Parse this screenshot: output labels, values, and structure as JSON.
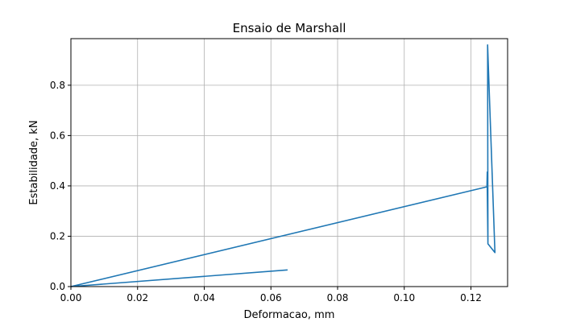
{
  "chart_data": {
    "type": "line",
    "title": "Ensaio de Marshall",
    "xlabel": "Deformacao, mm",
    "ylabel": "Estabilidade, kN",
    "xlim": [
      0,
      0.131
    ],
    "ylim": [
      0,
      0.985
    ],
    "grid": true,
    "x_ticks": [
      {
        "value": 0.0,
        "label": "0.00"
      },
      {
        "value": 0.02,
        "label": "0.02"
      },
      {
        "value": 0.04,
        "label": "0.04"
      },
      {
        "value": 0.06,
        "label": "0.06"
      },
      {
        "value": 0.08,
        "label": "0.08"
      },
      {
        "value": 0.1,
        "label": "0.10"
      },
      {
        "value": 0.12,
        "label": "0.12"
      }
    ],
    "y_ticks": [
      {
        "value": 0.0,
        "label": "0.0"
      },
      {
        "value": 0.2,
        "label": "0.2"
      },
      {
        "value": 0.4,
        "label": "0.4"
      },
      {
        "value": 0.6,
        "label": "0.6"
      },
      {
        "value": 0.8,
        "label": "0.8"
      }
    ],
    "series": [
      {
        "color": "#1f77b4",
        "points": [
          [
            0.065,
            0.066
          ],
          [
            0.0,
            0.0
          ],
          [
            0.125,
            0.397
          ],
          [
            0.1248,
            0.395
          ],
          [
            0.1249,
            0.455
          ],
          [
            0.1249,
            0.385
          ],
          [
            0.1251,
            0.17
          ],
          [
            0.1272,
            0.135
          ],
          [
            0.125,
            0.96
          ],
          [
            0.1251,
            0.175
          ]
        ]
      }
    ]
  }
}
